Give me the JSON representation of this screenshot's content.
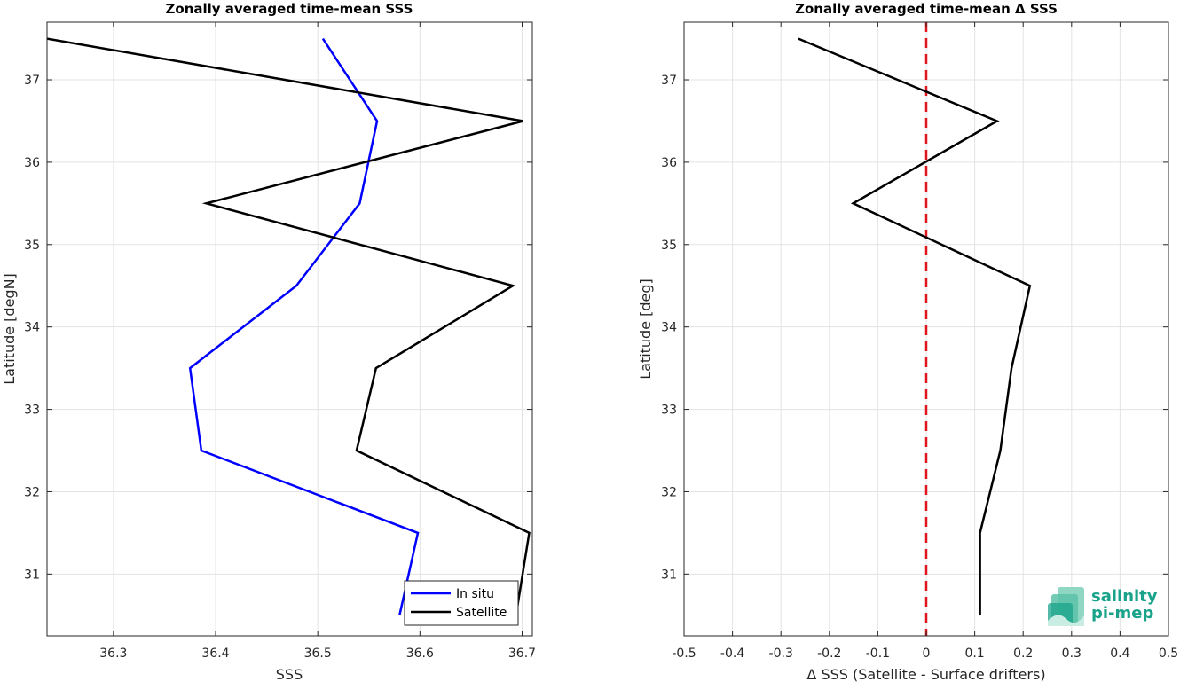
{
  "chart_data": [
    {
      "type": "line",
      "title": "Zonally averaged time-mean SSS",
      "xlabel": "SSS",
      "ylabel": "Latitude [degN]",
      "xlim": [
        36.235,
        36.71
      ],
      "ylim": [
        30.25,
        37.7
      ],
      "xticks": [
        36.3,
        36.4,
        36.5,
        36.6,
        36.7
      ],
      "xtick_labels": [
        "36.3",
        "36.4",
        "36.5",
        "36.6",
        "36.7"
      ],
      "yticks": [
        31,
        32,
        33,
        34,
        35,
        36,
        37
      ],
      "ytick_labels": [
        "31",
        "32",
        "33",
        "34",
        "35",
        "36",
        "37"
      ],
      "grid": true,
      "legend_position": "bottom-right",
      "series": [
        {
          "name": "In situ",
          "color": "#0000ff",
          "x": [
            36.58,
            36.598,
            36.386,
            36.375,
            36.479,
            36.541,
            36.558,
            36.505
          ],
          "y": [
            30.5,
            31.5,
            32.5,
            33.5,
            34.5,
            35.5,
            36.5,
            37.5
          ]
        },
        {
          "name": "Satellite",
          "color": "#000000",
          "x": [
            36.694,
            36.707,
            36.538,
            36.557,
            36.691,
            36.391,
            36.701,
            36.235
          ],
          "y": [
            30.5,
            31.5,
            32.5,
            33.5,
            34.5,
            35.5,
            36.5,
            37.5
          ]
        }
      ]
    },
    {
      "type": "line",
      "title": "Zonally averaged time-mean Δ SSS",
      "xlabel": "Δ SSS (Satellite - Surface drifters)",
      "ylabel": "Latitude [deg]",
      "xlim": [
        -0.5,
        0.5
      ],
      "ylim": [
        30.25,
        37.7
      ],
      "xticks": [
        -0.5,
        -0.4,
        -0.3,
        -0.2,
        -0.1,
        0,
        0.1,
        0.2,
        0.3,
        0.4,
        0.5
      ],
      "xtick_labels": [
        "-0.5",
        "-0.4",
        "-0.3",
        "-0.2",
        "-0.1",
        "0",
        "0.1",
        "0.2",
        "0.3",
        "0.4",
        "0.5"
      ],
      "yticks": [
        31,
        32,
        33,
        34,
        35,
        36,
        37
      ],
      "ytick_labels": [
        "31",
        "32",
        "33",
        "34",
        "35",
        "36",
        "37"
      ],
      "grid": true,
      "zero_line_color": "#e0161e",
      "series": [
        {
          "color": "#000000",
          "x": [
            0.111,
            0.111,
            0.153,
            0.176,
            0.214,
            -0.151,
            0.146,
            -0.264
          ],
          "y": [
            30.5,
            31.5,
            32.5,
            33.5,
            34.5,
            35.5,
            36.5,
            37.5
          ]
        }
      ]
    }
  ],
  "logo": {
    "line1": "salinity",
    "line2": "pi-mep",
    "color": "#1aa38a"
  }
}
